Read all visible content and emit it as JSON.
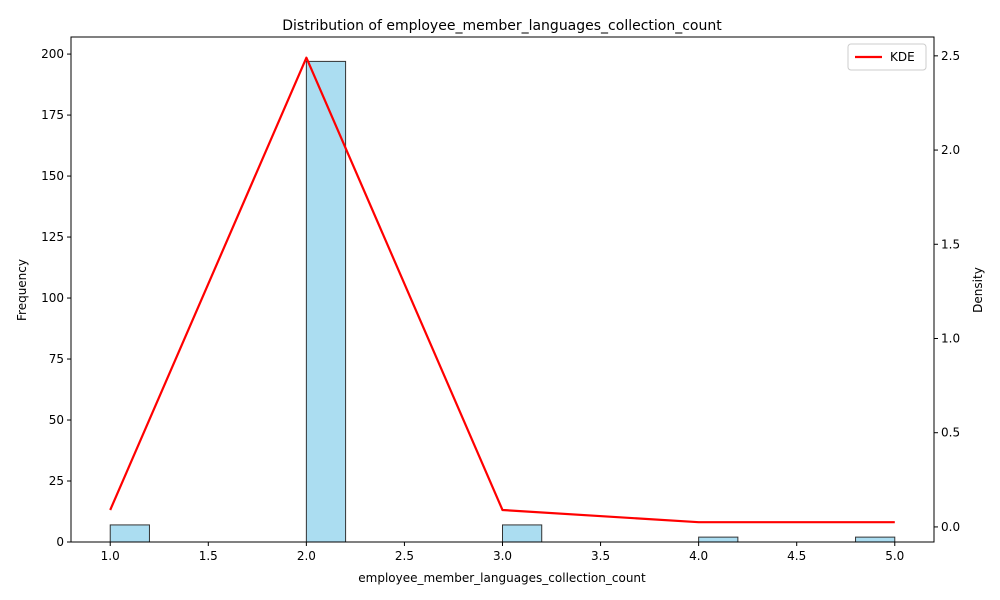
{
  "chart_data": {
    "type": "bar",
    "title": "Distribution of employee_member_languages_collection_count",
    "xlabel": "employee_member_languages_collection_count",
    "ylabel": "Frequency",
    "y2label": "Density",
    "xlim": [
      0.8,
      5.2
    ],
    "ylim": [
      0,
      207
    ],
    "y2lim": [
      -0.08,
      2.6
    ],
    "x_ticks": [
      1.0,
      1.5,
      2.0,
      2.5,
      3.0,
      3.5,
      4.0,
      4.5,
      5.0
    ],
    "x_tick_labels": [
      "1.0",
      "1.5",
      "2.0",
      "2.5",
      "3.0",
      "3.5",
      "4.0",
      "4.5",
      "5.0"
    ],
    "y_ticks": [
      0,
      25,
      50,
      75,
      100,
      125,
      150,
      175,
      200
    ],
    "y_tick_labels": [
      "0",
      "25",
      "50",
      "75",
      "100",
      "125",
      "150",
      "175",
      "200"
    ],
    "y2_ticks": [
      0.0,
      0.5,
      1.0,
      1.5,
      2.0,
      2.5
    ],
    "y2_tick_labels": [
      "0.0",
      "0.5",
      "1.0",
      "1.5",
      "2.0",
      "2.5"
    ],
    "histogram": {
      "bins": [
        {
          "x0": 1.0,
          "x1": 1.2,
          "count": 7
        },
        {
          "x0": 2.0,
          "x1": 2.2,
          "count": 197
        },
        {
          "x0": 3.0,
          "x1": 3.2,
          "count": 7
        },
        {
          "x0": 4.0,
          "x1": 4.2,
          "count": 2
        },
        {
          "x0": 4.8,
          "x1": 5.0,
          "count": 2
        }
      ],
      "fill": "#87ceeb",
      "edge": "#333333"
    },
    "series": [
      {
        "name": "KDE",
        "color": "#ff0000",
        "x": [
          1.0,
          2.0,
          3.0,
          4.0,
          5.0
        ],
        "y": [
          0.09,
          2.49,
          0.09,
          0.025,
          0.025
        ]
      }
    ],
    "legend": "top-right",
    "grid": false
  }
}
